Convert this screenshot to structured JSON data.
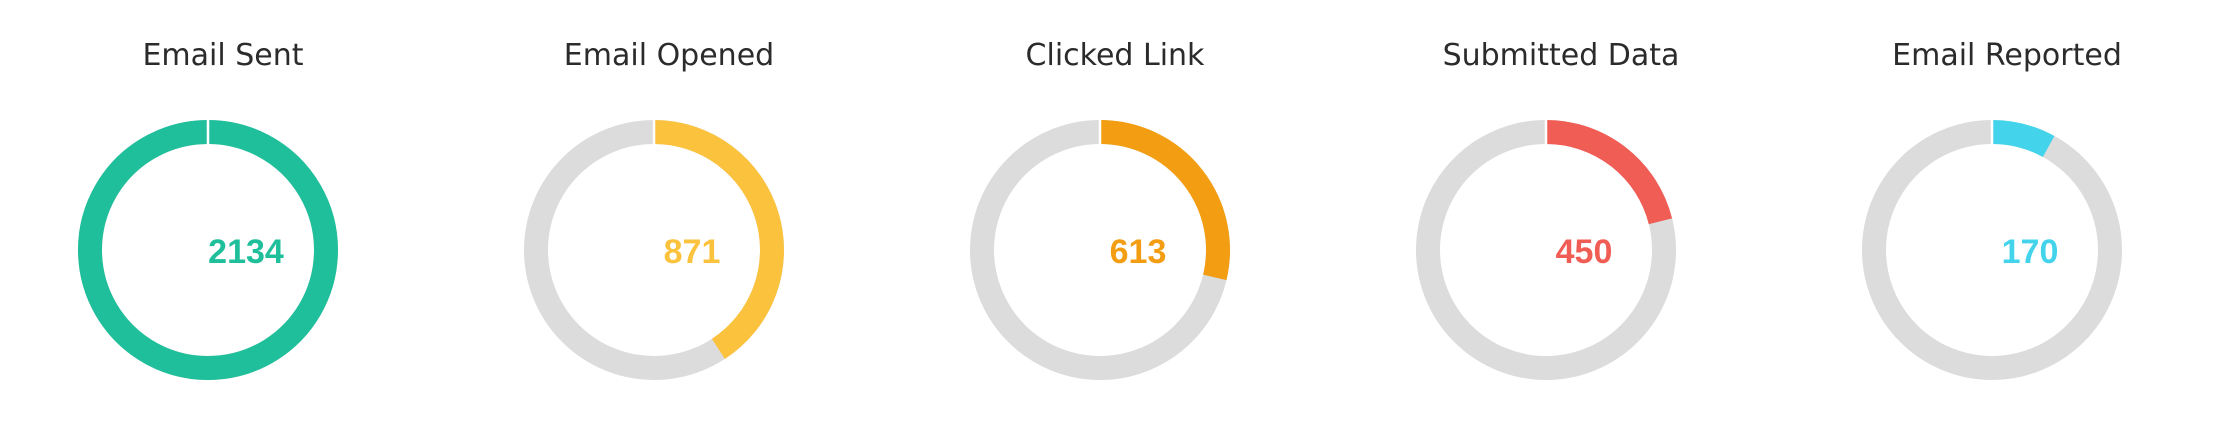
{
  "chart_data": {
    "type": "pie",
    "variant": "donut",
    "total": 2134,
    "ring_color": "#dcdcdc",
    "charts": [
      {
        "title": "Email Sent",
        "value": 2134,
        "color": "#1fbf9c"
      },
      {
        "title": "Email Opened",
        "value": 871,
        "color": "#fbc23e"
      },
      {
        "title": "Clicked Link",
        "value": 613,
        "color": "#f29d12"
      },
      {
        "title": "Submitted Data",
        "value": 450,
        "color": "#f05d55"
      },
      {
        "title": "Email Reported",
        "value": 170,
        "color": "#43d4ec"
      }
    ]
  }
}
